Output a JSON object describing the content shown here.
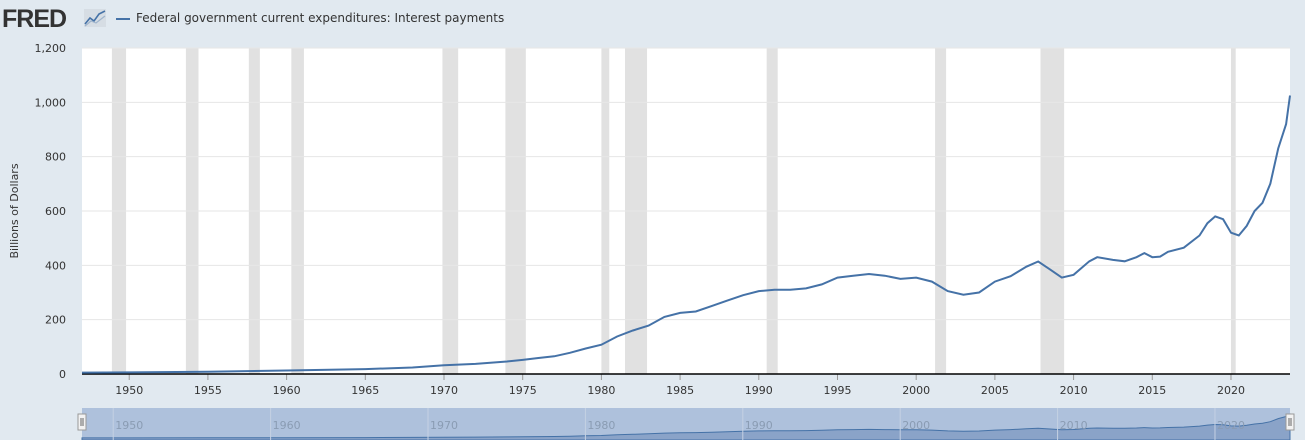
{
  "logo": {
    "text": "FRED",
    "icon": "chart-line-icon"
  },
  "colors": {
    "series": "#4572a7",
    "recession": "#e1e1e1",
    "background": "#e1e9f0",
    "plot": "#ffffff",
    "navigator_fill": "#a9bcd9"
  },
  "chart_data": {
    "type": "line",
    "title": "",
    "xlabel": "",
    "ylabel": "Billions of Dollars",
    "xlim": [
      1947,
      2023.75
    ],
    "ylim": [
      0,
      1200
    ],
    "yticks": [
      0,
      200,
      400,
      600,
      800,
      1000,
      1200
    ],
    "ytick_labels": [
      "0",
      "200",
      "400",
      "600",
      "800",
      "1,000",
      "1,200"
    ],
    "xticks": [
      1950,
      1955,
      1960,
      1965,
      1970,
      1975,
      1980,
      1985,
      1990,
      1995,
      2000,
      2005,
      2010,
      2015,
      2020
    ],
    "grid": true,
    "legend_position": "top-left",
    "series": [
      {
        "name": "Federal government current expenditures: Interest payments",
        "color": "#4572a7",
        "x": [
          1947,
          1950,
          1955,
          1960,
          1965,
          1968,
          1970,
          1972,
          1974,
          1975,
          1976,
          1977,
          1978,
          1979,
          1980,
          1981,
          1982,
          1983,
          1984,
          1985,
          1986,
          1987,
          1988,
          1989,
          1990,
          1991,
          1992,
          1993,
          1994,
          1995,
          1996,
          1997,
          1998,
          1999,
          2000,
          2001,
          2002,
          2003,
          2004,
          2005,
          2006,
          2007,
          2007.75,
          2008.5,
          2009.25,
          2010,
          2011,
          2011.5,
          2012.5,
          2013.25,
          2014,
          2014.5,
          2015,
          2015.5,
          2016,
          2017,
          2018,
          2018.5,
          2019,
          2019.5,
          2020,
          2020.5,
          2021,
          2021.5,
          2022,
          2022.5,
          2023,
          2023.5,
          2023.75
        ],
        "y": [
          5,
          6,
          8,
          13,
          18,
          24,
          32,
          37,
          46,
          52,
          59,
          65,
          78,
          94,
          108,
          138,
          160,
          178,
          210,
          225,
          230,
          250,
          270,
          290,
          305,
          310,
          310,
          315,
          330,
          355,
          362,
          368,
          362,
          350,
          355,
          340,
          305,
          292,
          300,
          340,
          360,
          395,
          414,
          385,
          355,
          365,
          415,
          430,
          420,
          415,
          430,
          445,
          430,
          432,
          450,
          465,
          510,
          555,
          580,
          570,
          520,
          510,
          545,
          600,
          630,
          700,
          830,
          920,
          1025
        ]
      }
    ],
    "recessions": [
      [
        1948.9,
        1949.8
      ],
      [
        1953.6,
        1954.4
      ],
      [
        1957.6,
        1958.3
      ],
      [
        1960.3,
        1961.1
      ],
      [
        1969.9,
        1970.9
      ],
      [
        1973.9,
        1975.2
      ],
      [
        1980.0,
        1980.5
      ],
      [
        1981.5,
        1982.9
      ],
      [
        1990.5,
        1991.2
      ],
      [
        2001.2,
        2001.9
      ],
      [
        2007.9,
        2009.4
      ],
      [
        2020.0,
        2020.3
      ]
    ],
    "navigator": {
      "xticks": [
        1950,
        1960,
        1970,
        1980,
        1990,
        2000,
        2010,
        2020
      ]
    }
  }
}
